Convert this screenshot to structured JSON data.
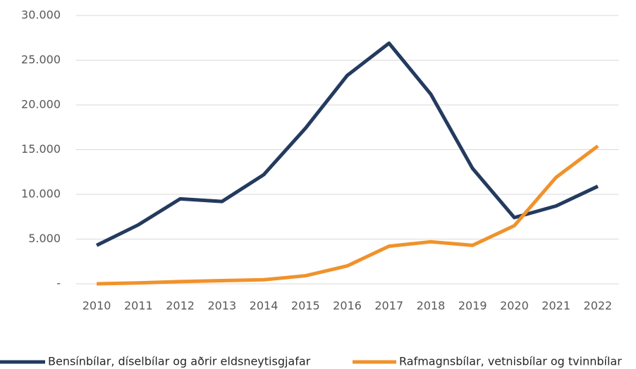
{
  "chart_data": {
    "type": "line",
    "categories": [
      "2010",
      "2011",
      "2012",
      "2013",
      "2014",
      "2015",
      "2016",
      "2017",
      "2018",
      "2019",
      "2020",
      "2021",
      "2022"
    ],
    "series": [
      {
        "name": "Bensínbílar, díselbílar og aðrir eldsneytisgjafar",
        "color": "#243a5e",
        "values": [
          4300,
          6600,
          9500,
          9200,
          12200,
          17400,
          23300,
          26900,
          21200,
          12900,
          7400,
          8700,
          10900
        ]
      },
      {
        "name": "Rafmagnsbílar, vetnisbílar og tvinnbílar",
        "color": "#f0922b",
        "values": [
          0,
          100,
          250,
          350,
          450,
          900,
          2000,
          4200,
          4700,
          4300,
          6500,
          11900,
          15400
        ]
      }
    ],
    "ylim": [
      0,
      30000
    ],
    "yticks": [
      {
        "value": 0,
        "label": "-"
      },
      {
        "value": 5000,
        "label": "5.000"
      },
      {
        "value": 10000,
        "label": "10.000"
      },
      {
        "value": 15000,
        "label": "15.000"
      },
      {
        "value": 20000,
        "label": "20.000"
      },
      {
        "value": 25000,
        "label": "25.000"
      },
      {
        "value": 30000,
        "label": "30.000"
      }
    ],
    "grid": true,
    "legend": "bottom"
  }
}
